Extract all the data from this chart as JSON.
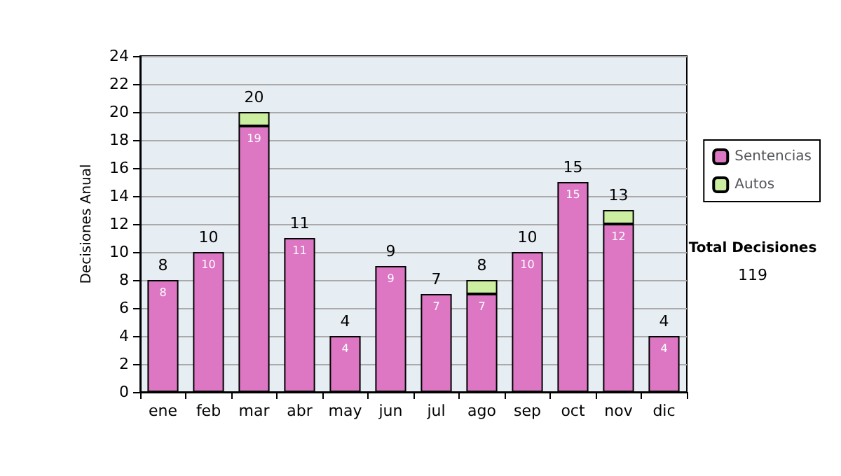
{
  "chart_data": {
    "type": "bar",
    "stacked": true,
    "ylabel": "Decisiones Anual",
    "categories": [
      "ene",
      "feb",
      "mar",
      "abr",
      "may",
      "jun",
      "jul",
      "ago",
      "sep",
      "oct",
      "nov",
      "dic"
    ],
    "series": [
      {
        "name": "Sentencias",
        "color": "#dd77c4",
        "values": [
          8,
          10,
          19,
          11,
          4,
          9,
          7,
          7,
          10,
          15,
          12,
          4
        ],
        "value_labels": [
          "8",
          "10",
          "19",
          "11",
          "4",
          "9",
          "7",
          "7",
          "10",
          "15",
          "12",
          "4"
        ]
      },
      {
        "name": "Autos",
        "color": "#cceea0",
        "values": [
          0,
          0,
          1,
          0,
          0,
          0,
          0,
          1,
          0,
          0,
          1,
          0
        ]
      }
    ],
    "totals": [
      "8",
      "10",
      "20",
      "11",
      "4",
      "9",
      "7",
      "8",
      "10",
      "15",
      "13",
      "4"
    ],
    "ylim": [
      0,
      24
    ],
    "yticks": [
      0,
      2,
      4,
      6,
      8,
      10,
      12,
      14,
      16,
      18,
      20,
      22,
      24
    ],
    "grid": "y",
    "legend": "right",
    "annotations": [
      "Total Decisiones",
      "119"
    ]
  }
}
